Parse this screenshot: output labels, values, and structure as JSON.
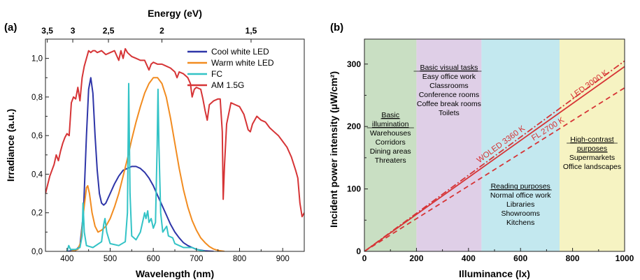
{
  "chart_data": [
    {
      "panel": "(a)",
      "type": "line",
      "xlabel": "Wavelength (nm)",
      "ylabel": "Irradiance (a.u.)",
      "x2label": "Energy (eV)",
      "xlim": [
        350,
        950
      ],
      "ylim": [
        0,
        1.1
      ],
      "xticks": [
        "400",
        "500",
        "600",
        "700",
        "800",
        "900"
      ],
      "yticks": [
        "0,0",
        "0,2",
        "0,4",
        "0,6",
        "0,8",
        "1,0"
      ],
      "x2ticks": [
        {
          "label": "3,5",
          "ev": 3.5
        },
        {
          "label": "3",
          "ev": 3.0
        },
        {
          "label": "2,5",
          "ev": 2.5
        },
        {
          "label": "2",
          "ev": 2.0
        },
        {
          "label": "1,5",
          "ev": 1.5
        }
      ],
      "legend_position": "top-right",
      "series": [
        {
          "name": "Cool white LED",
          "color": "#2e35a8",
          "points": [
            [
              400,
              0
            ],
            [
              420,
              0.005
            ],
            [
              430,
              0.03
            ],
            [
              438,
              0.2
            ],
            [
              445,
              0.6
            ],
            [
              450,
              0.84
            ],
            [
              455,
              0.9
            ],
            [
              460,
              0.82
            ],
            [
              465,
              0.6
            ],
            [
              470,
              0.42
            ],
            [
              475,
              0.3
            ],
            [
              480,
              0.25
            ],
            [
              485,
              0.24
            ],
            [
              490,
              0.25
            ],
            [
              500,
              0.3
            ],
            [
              510,
              0.35
            ],
            [
              520,
              0.39
            ],
            [
              530,
              0.42
            ],
            [
              540,
              0.43
            ],
            [
              550,
              0.44
            ],
            [
              560,
              0.44
            ],
            [
              570,
              0.43
            ],
            [
              580,
              0.41
            ],
            [
              590,
              0.38
            ],
            [
              600,
              0.34
            ],
            [
              610,
              0.29
            ],
            [
              620,
              0.24
            ],
            [
              630,
              0.19
            ],
            [
              640,
              0.14
            ],
            [
              650,
              0.1
            ],
            [
              660,
              0.07
            ],
            [
              670,
              0.045
            ],
            [
              680,
              0.03
            ],
            [
              690,
              0.02
            ],
            [
              700,
              0.01
            ],
            [
              720,
              0.003
            ],
            [
              740,
              0
            ]
          ]
        },
        {
          "name": "Warm white LED",
          "color": "#f28c20",
          "points": [
            [
              410,
              0
            ],
            [
              425,
              0.01
            ],
            [
              432,
              0.05
            ],
            [
              438,
              0.2
            ],
            [
              445,
              0.33
            ],
            [
              448,
              0.34
            ],
            [
              452,
              0.3
            ],
            [
              458,
              0.2
            ],
            [
              465,
              0.13
            ],
            [
              472,
              0.1
            ],
            [
              480,
              0.11
            ],
            [
              490,
              0.13
            ],
            [
              500,
              0.17
            ],
            [
              510,
              0.23
            ],
            [
              520,
              0.3
            ],
            [
              530,
              0.39
            ],
            [
              540,
              0.48
            ],
            [
              550,
              0.58
            ],
            [
              560,
              0.67
            ],
            [
              570,
              0.75
            ],
            [
              580,
              0.82
            ],
            [
              590,
              0.87
            ],
            [
              600,
              0.9
            ],
            [
              610,
              0.9
            ],
            [
              620,
              0.87
            ],
            [
              630,
              0.8
            ],
            [
              640,
              0.69
            ],
            [
              650,
              0.56
            ],
            [
              660,
              0.43
            ],
            [
              670,
              0.32
            ],
            [
              680,
              0.23
            ],
            [
              690,
              0.16
            ],
            [
              700,
              0.11
            ],
            [
              710,
              0.07
            ],
            [
              720,
              0.045
            ],
            [
              730,
              0.025
            ],
            [
              740,
              0.012
            ],
            [
              750,
              0.005
            ],
            [
              765,
              0
            ]
          ]
        },
        {
          "name": "FC",
          "color": "#33c3c6",
          "points": [
            [
              400,
              0
            ],
            [
              404,
              0.03
            ],
            [
              408,
              0.01
            ],
            [
              420,
              0.01
            ],
            [
              430,
              0.02
            ],
            [
              435,
              0.08
            ],
            [
              437,
              0.25
            ],
            [
              440,
              0.1
            ],
            [
              445,
              0.03
            ],
            [
              460,
              0.02
            ],
            [
              480,
              0.05
            ],
            [
              485,
              0.14
            ],
            [
              488,
              0.17
            ],
            [
              492,
              0.1
            ],
            [
              500,
              0.04
            ],
            [
              520,
              0.03
            ],
            [
              535,
              0.05
            ],
            [
              540,
              0.2
            ],
            [
              543,
              0.87
            ],
            [
              546,
              0.3
            ],
            [
              550,
              0.08
            ],
            [
              560,
              0.06
            ],
            [
              570,
              0.1
            ],
            [
              578,
              0.18
            ],
            [
              580,
              0.2
            ],
            [
              583,
              0.17
            ],
            [
              587,
              0.21
            ],
            [
              590,
              0.15
            ],
            [
              595,
              0.17
            ],
            [
              600,
              0.12
            ],
            [
              605,
              0.15
            ],
            [
              609,
              0.55
            ],
            [
              611,
              0.84
            ],
            [
              613,
              0.55
            ],
            [
              617,
              0.2
            ],
            [
              622,
              0.1
            ],
            [
              628,
              0.12
            ],
            [
              631,
              0.13
            ],
            [
              635,
              0.08
            ],
            [
              645,
              0.07
            ],
            [
              650,
              0.04
            ],
            [
              660,
              0.03
            ],
            [
              670,
              0.02
            ],
            [
              680,
              0.02
            ],
            [
              690,
              0.02
            ],
            [
              700,
              0.01
            ],
            [
              710,
              0.005
            ],
            [
              720,
              0
            ]
          ]
        },
        {
          "name": "AM 1.5G",
          "color": "#d63436",
          "points": [
            [
              350,
              0.3
            ],
            [
              360,
              0.39
            ],
            [
              370,
              0.45
            ],
            [
              375,
              0.5
            ],
            [
              380,
              0.47
            ],
            [
              385,
              0.52
            ],
            [
              390,
              0.56
            ],
            [
              395,
              0.59
            ],
            [
              400,
              0.61
            ],
            [
              405,
              0.6
            ],
            [
              410,
              0.77
            ],
            [
              415,
              0.8
            ],
            [
              420,
              0.79
            ],
            [
              425,
              0.85
            ],
            [
              430,
              0.78
            ],
            [
              435,
              0.9
            ],
            [
              440,
              0.96
            ],
            [
              445,
              1.0
            ],
            [
              450,
              1.04
            ],
            [
              455,
              1.03
            ],
            [
              460,
              1.04
            ],
            [
              465,
              1.04
            ],
            [
              470,
              1.03
            ],
            [
              480,
              1.04
            ],
            [
              490,
              1.02
            ],
            [
              500,
              1.03
            ],
            [
              510,
              1.04
            ],
            [
              520,
              0.99
            ],
            [
              525,
              1.04
            ],
            [
              530,
              1.0
            ],
            [
              535,
              1.05
            ],
            [
              540,
              1.03
            ],
            [
              550,
              1.01
            ],
            [
              560,
              1.0
            ],
            [
              570,
              0.99
            ],
            [
              580,
              0.99
            ],
            [
              590,
              0.94
            ],
            [
              595,
              0.97
            ],
            [
              600,
              0.98
            ],
            [
              610,
              0.97
            ],
            [
              620,
              0.97
            ],
            [
              630,
              0.96
            ],
            [
              640,
              0.95
            ],
            [
              650,
              0.93
            ],
            [
              655,
              0.9
            ],
            [
              660,
              0.93
            ],
            [
              670,
              0.92
            ],
            [
              680,
              0.9
            ],
            [
              686,
              0.87
            ],
            [
              690,
              0.8
            ],
            [
              695,
              0.84
            ],
            [
              700,
              0.85
            ],
            [
              710,
              0.84
            ],
            [
              715,
              0.79
            ],
            [
              720,
              0.73
            ],
            [
              725,
              0.68
            ],
            [
              730,
              0.76
            ],
            [
              740,
              0.78
            ],
            [
              750,
              0.79
            ],
            [
              755,
              0.79
            ],
            [
              760,
              0.62
            ],
            [
              762,
              0.27
            ],
            [
              765,
              0.44
            ],
            [
              770,
              0.66
            ],
            [
              780,
              0.77
            ],
            [
              790,
              0.76
            ],
            [
              800,
              0.75
            ],
            [
              810,
              0.71
            ],
            [
              815,
              0.67
            ],
            [
              820,
              0.63
            ],
            [
              825,
              0.62
            ],
            [
              830,
              0.66
            ],
            [
              840,
              0.7
            ],
            [
              850,
              0.68
            ],
            [
              860,
              0.67
            ],
            [
              870,
              0.64
            ],
            [
              880,
              0.62
            ],
            [
              890,
              0.6
            ],
            [
              900,
              0.57
            ],
            [
              910,
              0.54
            ],
            [
              920,
              0.49
            ],
            [
              930,
              0.42
            ],
            [
              935,
              0.38
            ],
            [
              940,
              0.25
            ],
            [
              945,
              0.18
            ],
            [
              950,
              0.2
            ]
          ]
        }
      ]
    },
    {
      "panel": "(b)",
      "type": "line",
      "xlabel": "Illuminance (lx)",
      "ylabel": "Incident power intensity (μW/cm²)",
      "xlim": [
        0,
        1000
      ],
      "ylim": [
        0,
        340
      ],
      "xticks": [
        "0",
        "200",
        "400",
        "600",
        "800",
        "1000"
      ],
      "yticks": [
        "0",
        "100",
        "200",
        "300"
      ],
      "regions": [
        {
          "from": 0,
          "to": 200,
          "color": "#c9dfc3",
          "heading": [
            "Basic",
            "illumination"
          ],
          "items": [
            "Warehouses",
            "Corridors",
            "Dining areas",
            "Threaters"
          ]
        },
        {
          "from": 200,
          "to": 450,
          "color": "#dfcfe7",
          "heading": [
            "Basic visual tasks"
          ],
          "items": [
            "Easy office work",
            "Classrooms",
            "Conference rooms",
            "Coffee break rooms",
            "Toilets"
          ]
        },
        {
          "from": 450,
          "to": 750,
          "color": "#c3e8ef",
          "heading": [
            "Reading purposes"
          ],
          "items": [
            "Normal office work",
            "Libraries",
            "Showrooms",
            "Kitchens"
          ]
        },
        {
          "from": 750,
          "to": 1000,
          "color": "#f6f3c2",
          "heading": [
            "High-contrast",
            "purposes"
          ],
          "items": [
            "Supermarkets",
            "Office landscapes"
          ]
        }
      ],
      "series": [
        {
          "name": "WOLED 3360 K",
          "color": "#d63436",
          "style": "dashdot",
          "points": [
            [
              0,
              0
            ],
            [
              1000,
              305
            ]
          ]
        },
        {
          "name": "LED 3000 K",
          "color": "#d63436",
          "style": "solid",
          "points": [
            [
              0,
              0
            ],
            [
              1000,
              296
            ]
          ]
        },
        {
          "name": "FL 2700 K",
          "color": "#d63436",
          "style": "dashed",
          "points": [
            [
              0,
              0
            ],
            [
              1000,
              262
            ]
          ]
        }
      ]
    }
  ]
}
